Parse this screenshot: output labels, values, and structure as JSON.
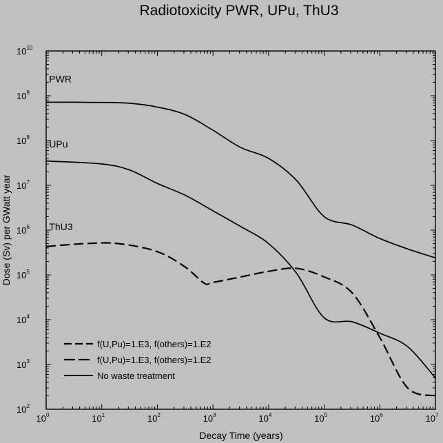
{
  "chart_data": {
    "type": "line",
    "title": "Radiotoxicity PWR, UPu, ThU3",
    "xlabel": "Decay Time (years)",
    "ylabel": "Dose (Sv) per GWatt year",
    "xscale": "log",
    "yscale": "log",
    "xlim": [
      1,
      10000000
    ],
    "ylim": [
      100,
      10000000000
    ],
    "grid": false,
    "legend_position": "bottom-left",
    "x_ticks": [
      {
        "base": "10",
        "exp": "0"
      },
      {
        "base": "10",
        "exp": "1"
      },
      {
        "base": "10",
        "exp": "2"
      },
      {
        "base": "10",
        "exp": "3"
      },
      {
        "base": "10",
        "exp": "4"
      },
      {
        "base": "10",
        "exp": "5"
      },
      {
        "base": "10",
        "exp": "6"
      },
      {
        "base": "10",
        "exp": "7"
      }
    ],
    "y_ticks": [
      {
        "base": "10",
        "exp": "2"
      },
      {
        "base": "10",
        "exp": "3"
      },
      {
        "base": "10",
        "exp": "4"
      },
      {
        "base": "10",
        "exp": "5"
      },
      {
        "base": "10",
        "exp": "6"
      },
      {
        "base": "10",
        "exp": "7"
      },
      {
        "base": "10",
        "exp": "8"
      },
      {
        "base": "10",
        "exp": "9"
      },
      {
        "base": "10",
        "exp": "10"
      }
    ],
    "annotations": [
      {
        "text": "PWR",
        "x": 2,
        "y": 2000000000
      },
      {
        "text": "UPu",
        "x": 2,
        "y": 70000000
      },
      {
        "text": "ThU3",
        "x": 2,
        "y": 1000000
      }
    ],
    "legend": [
      {
        "label": "f(U,Pu)=1.E3, f(others)=1.E2",
        "style": "dashed"
      },
      {
        "label": "f(U,Pu)=1.E3, f(others)=1.E2",
        "style": "long-dashed"
      },
      {
        "label": "No waste treatment",
        "style": "solid"
      }
    ],
    "series": [
      {
        "style": "solid",
        "points": [
          [
            1,
            720000000
          ],
          [
            10,
            710000000
          ],
          [
            31.6,
            680000000
          ],
          [
            100,
            560000000
          ],
          [
            316,
            380000000
          ],
          [
            1000,
            170000000
          ],
          [
            3160,
            70000000
          ],
          [
            10000,
            40000000
          ],
          [
            31600,
            13000000
          ],
          [
            100000,
            2000000
          ],
          [
            316000,
            1300000
          ],
          [
            1000000,
            650000
          ],
          [
            3160000,
            380000
          ],
          [
            10000000,
            240000
          ]
        ]
      },
      {
        "style": "solid",
        "points": [
          [
            1,
            35000000
          ],
          [
            10,
            30000000
          ],
          [
            31.6,
            22000000
          ],
          [
            100,
            11000000
          ],
          [
            316,
            6000000
          ],
          [
            1000,
            2700000
          ],
          [
            3160,
            1200000
          ],
          [
            10000,
            500000
          ],
          [
            31600,
            110000
          ],
          [
            100000,
            11000
          ],
          [
            316000,
            9000
          ],
          [
            1000000,
            5000
          ],
          [
            3160000,
            2500
          ],
          [
            10000000,
            500
          ]
        ]
      },
      {
        "style": "dashed",
        "points": [
          [
            1,
            430000
          ],
          [
            5,
            500000
          ],
          [
            20,
            500000
          ],
          [
            100,
            330000
          ],
          [
            316,
            150000
          ],
          [
            700,
            65000
          ],
          [
            1000,
            68000
          ],
          [
            3160,
            90000
          ],
          [
            10000,
            120000
          ],
          [
            31600,
            140000
          ],
          [
            100000,
            90000
          ],
          [
            316000,
            40000
          ],
          [
            1000000,
            4000
          ],
          [
            3160000,
            300
          ],
          [
            10000000,
            200
          ]
        ]
      }
    ]
  }
}
